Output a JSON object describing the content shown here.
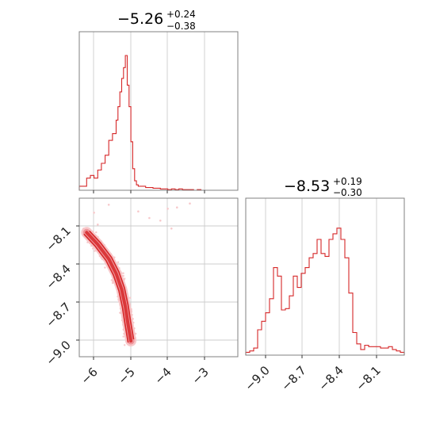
{
  "colors": {
    "line": "#d62728",
    "fill": "#f2b8ba",
    "light": "#f7c9cb"
  },
  "chart_data": [
    {
      "type": "histogram",
      "panel": "top-left",
      "title": {
        "median": "−5.26",
        "plus": "+0.24",
        "minus": "−0.38"
      },
      "xlim": [
        -6.4,
        -2.1
      ],
      "ticks": [
        -6,
        -5,
        -4,
        -3
      ],
      "bin_edges_x": [
        -6.4,
        -6.3,
        -6.2,
        -6.1,
        -6.0,
        -5.9,
        -5.8,
        -5.7,
        -5.6,
        -5.5,
        -5.4,
        -5.35,
        -5.3,
        -5.25,
        -5.2,
        -5.15,
        -5.1,
        -5.05,
        -5.0,
        -4.95,
        -4.9,
        -4.85,
        -4.8,
        -4.7,
        -4.6,
        -4.5,
        -4.4,
        -4.3,
        -4.2,
        -4.1,
        -4.0,
        -3.9,
        -3.8,
        -3.7,
        -3.6,
        -3.5,
        -3.4,
        -3.3,
        -3.2,
        -3.1,
        -3.0,
        -2.9,
        -2.8,
        -2.1
      ],
      "values": [
        0.03,
        0.03,
        0.09,
        0.11,
        0.09,
        0.15,
        0.2,
        0.26,
        0.37,
        0.42,
        0.52,
        0.62,
        0.73,
        0.83,
        0.91,
        1.0,
        0.78,
        0.62,
        0.36,
        0.16,
        0.07,
        0.04,
        0.03,
        0.03,
        0.02,
        0.02,
        0.015,
        0.015,
        0.01,
        0.01,
        0.005,
        0.01,
        0.005,
        0.01,
        0.005,
        0.005,
        0.005,
        0.0,
        0.005,
        0.0,
        0.0,
        0.0,
        0.0
      ]
    },
    {
      "type": "scatter",
      "panel": "bottom-left",
      "xlim": [
        -6.4,
        -2.1
      ],
      "ylim": [
        -9.15,
        -7.95
      ],
      "xticks": [
        -6,
        -5,
        -4,
        -3
      ],
      "yticks": [
        -8.1,
        -8.4,
        -8.7,
        -9.0
      ],
      "ridge": [
        [
          -6.2,
          -8.21
        ],
        [
          -5.9,
          -8.3
        ],
        [
          -5.6,
          -8.41
        ],
        [
          -5.4,
          -8.52
        ],
        [
          -5.25,
          -8.64
        ],
        [
          -5.15,
          -8.77
        ],
        [
          -5.08,
          -8.9
        ],
        [
          -5.0,
          -9.03
        ]
      ],
      "contour_levels": 3,
      "sparse_points": [
        [
          -4.0,
          -8.03
        ],
        [
          -3.75,
          -8.02
        ],
        [
          -3.4,
          -7.99
        ],
        [
          -4.8,
          -8.05
        ],
        [
          -5.6,
          -8.0
        ],
        [
          -4.2,
          -8.12
        ],
        [
          -6.0,
          -8.06
        ],
        [
          -5.9,
          -8.15
        ],
        [
          -3.9,
          -8.18
        ],
        [
          -4.5,
          -8.1
        ]
      ]
    },
    {
      "type": "histogram",
      "panel": "bottom-right",
      "title": {
        "median": "−8.53",
        "plus": "+0.19",
        "minus": "−0.30"
      },
      "xlim": [
        -9.15,
        -7.95
      ],
      "ticks": [
        -9.0,
        -8.7,
        -8.4,
        -8.1
      ],
      "tick_labels": [
        "−9.0",
        "−8.7",
        "−8.4",
        "−8.1"
      ],
      "values": [
        0.02,
        0.03,
        0.05,
        0.18,
        0.24,
        0.3,
        0.4,
        0.62,
        0.56,
        0.32,
        0.33,
        0.42,
        0.56,
        0.48,
        0.58,
        0.62,
        0.69,
        0.72,
        0.82,
        0.72,
        0.7,
        0.82,
        0.86,
        0.9,
        0.82,
        0.69,
        0.44,
        0.16,
        0.08,
        0.04,
        0.07,
        0.06,
        0.06,
        0.06,
        0.05,
        0.05,
        0.06,
        0.04,
        0.03,
        0.02
      ]
    }
  ]
}
